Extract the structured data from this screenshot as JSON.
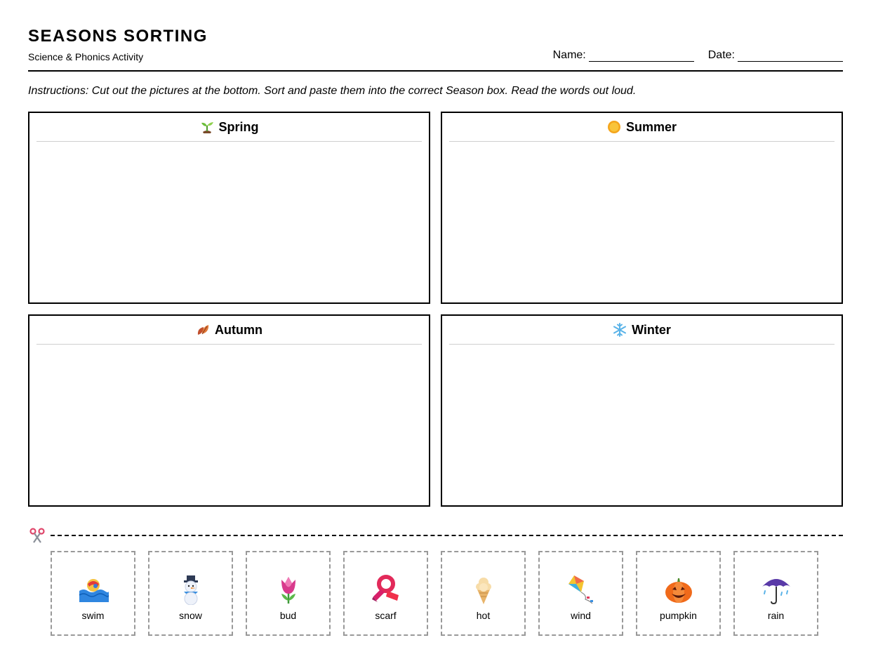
{
  "header": {
    "title": "SEASONS SORTING",
    "subtitle": "Science & Phonics Activity",
    "name_label": "Name:",
    "date_label": "Date:"
  },
  "instructions": "Instructions: Cut out the pictures at the bottom. Sort and paste them into the correct Season box. Read the words out loud.",
  "seasons": [
    {
      "label": "Spring",
      "icon": "seedling-icon"
    },
    {
      "label": "Summer",
      "icon": "sun-icon"
    },
    {
      "label": "Autumn",
      "icon": "fallen-leaves-icon"
    },
    {
      "label": "Winter",
      "icon": "snowflake-icon"
    }
  ],
  "cut_line": {
    "icon": "scissors-icon"
  },
  "cards": [
    {
      "word": "swim",
      "icon": "swimmer-icon"
    },
    {
      "word": "snow",
      "icon": "snowman-icon"
    },
    {
      "word": "bud",
      "icon": "tulip-icon"
    },
    {
      "word": "scarf",
      "icon": "scarf-icon"
    },
    {
      "word": "hot",
      "icon": "ice-cream-icon"
    },
    {
      "word": "wind",
      "icon": "kite-icon"
    },
    {
      "word": "pumpkin",
      "icon": "pumpkin-icon"
    },
    {
      "word": "rain",
      "icon": "umbrella-rain-icon"
    }
  ]
}
